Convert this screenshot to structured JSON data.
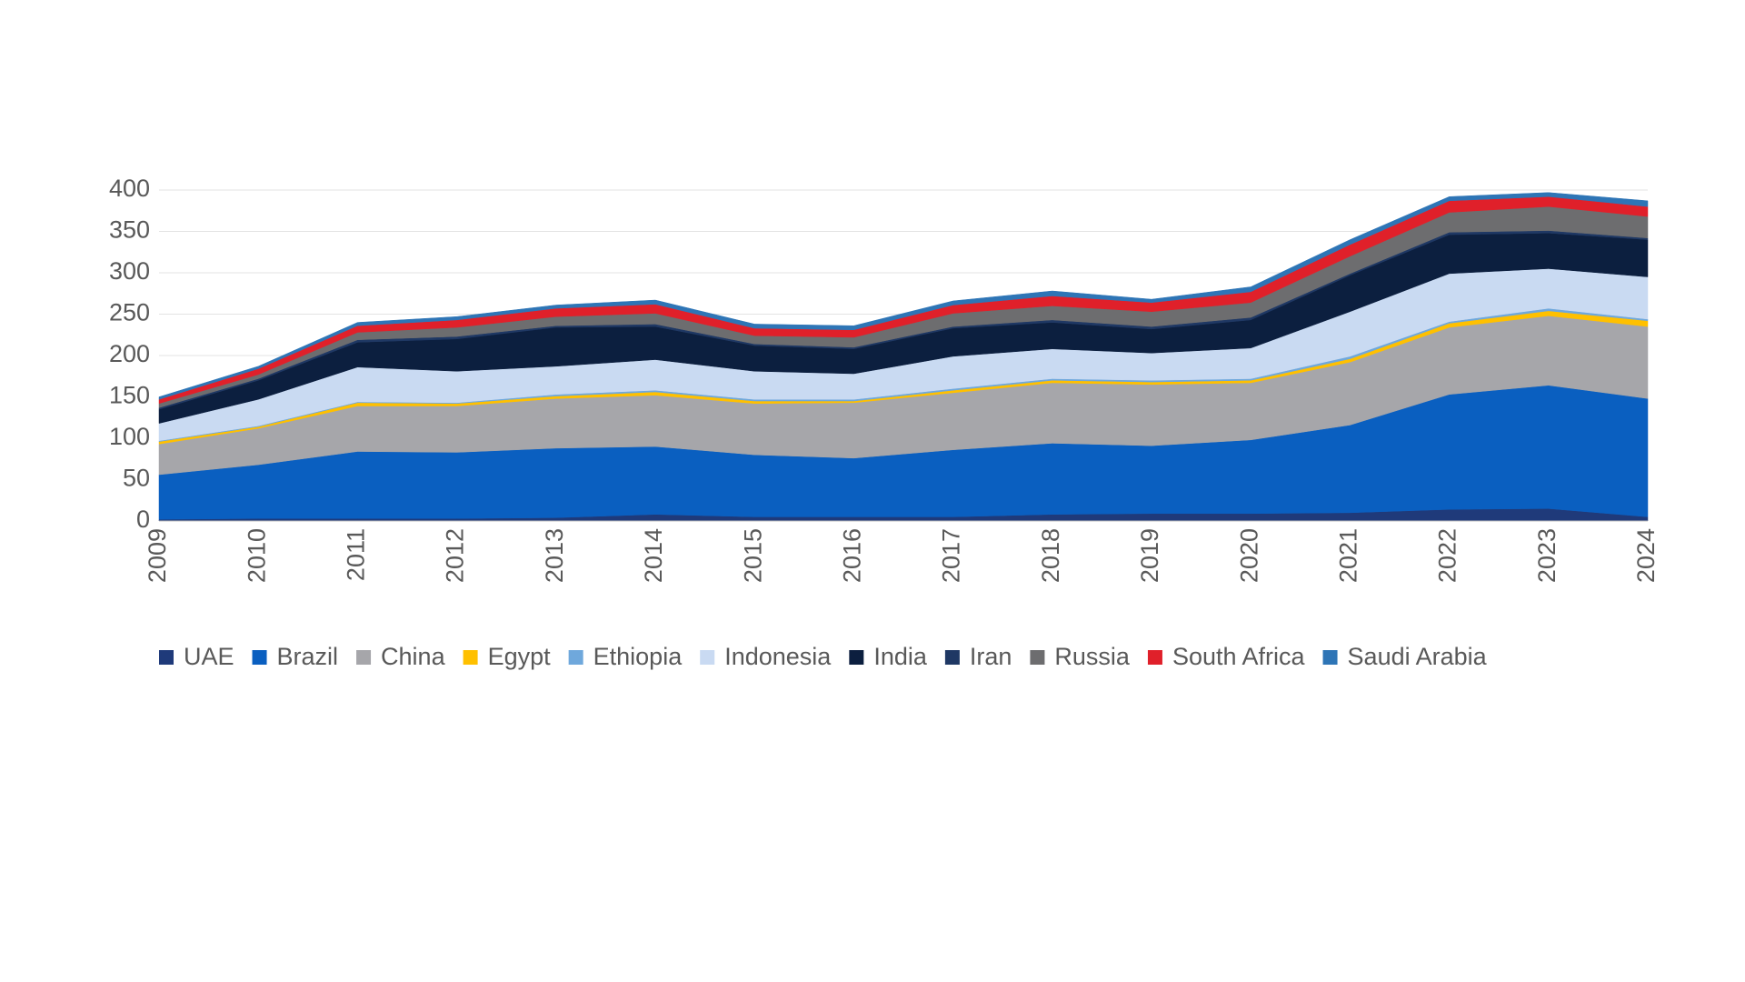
{
  "chart_data": {
    "type": "stacked-area",
    "categories": [
      "2009",
      "2010",
      "2011",
      "2012",
      "2013",
      "2014",
      "2015",
      "2016",
      "2017",
      "2018",
      "2019",
      "2020",
      "2021",
      "2022",
      "2023",
      "2024"
    ],
    "series": [
      {
        "name": "UAE",
        "color": "#1f3a7a",
        "values": [
          2,
          3,
          3,
          3,
          4,
          8,
          5,
          5,
          5,
          8,
          9,
          9,
          10,
          14,
          15,
          5
        ]
      },
      {
        "name": "Brazil",
        "color": "#0a5fc0",
        "values": [
          54,
          65,
          81,
          80,
          84,
          82,
          75,
          71,
          81,
          86,
          82,
          89,
          106,
          139,
          149,
          143
        ]
      },
      {
        "name": "China",
        "color": "#a6a6aa",
        "values": [
          37,
          44,
          55,
          56,
          60,
          62,
          62,
          67,
          69,
          73,
          74,
          69,
          76,
          81,
          84,
          87
        ]
      },
      {
        "name": "Egypt",
        "color": "#ffc000",
        "values": [
          3,
          2,
          4,
          3,
          3,
          4,
          3,
          2,
          3,
          3,
          3,
          3,
          4,
          5,
          6,
          7
        ]
      },
      {
        "name": "Ethiopia",
        "color": "#6fa8dc",
        "values": [
          1,
          1,
          1,
          1,
          2,
          2,
          2,
          2,
          2,
          2,
          2,
          2,
          3,
          2,
          3,
          2
        ]
      },
      {
        "name": "Indonesia",
        "color": "#c9daf2",
        "values": [
          21,
          32,
          42,
          38,
          34,
          37,
          34,
          31,
          39,
          36,
          33,
          37,
          54,
          58,
          48,
          51
        ]
      },
      {
        "name": "India",
        "color": "#0c1f3f",
        "values": [
          17,
          23,
          30,
          39,
          47,
          40,
          31,
          30,
          34,
          32,
          29,
          34,
          44,
          47,
          43,
          45
        ]
      },
      {
        "name": "Iran",
        "color": "#1f3864",
        "values": [
          2,
          2,
          3,
          3,
          2,
          3,
          2,
          2,
          2,
          3,
          3,
          3,
          2,
          3,
          3,
          2
        ]
      },
      {
        "name": "Russia",
        "color": "#6d6d6f",
        "values": [
          5,
          5,
          9,
          11,
          11,
          13,
          10,
          12,
          16,
          17,
          18,
          18,
          21,
          24,
          29,
          26
        ]
      },
      {
        "name": "South Africa",
        "color": "#e0202a",
        "values": [
          5,
          7,
          8,
          9,
          10,
          11,
          9,
          9,
          10,
          12,
          11,
          13,
          14,
          14,
          12,
          12
        ]
      },
      {
        "name": "Saudi Arabia",
        "color": "#2e75b6",
        "values": [
          3,
          3,
          4,
          4,
          4,
          5,
          5,
          5,
          5,
          6,
          4,
          6,
          6,
          5,
          5,
          7
        ]
      }
    ],
    "ylim": [
      0,
      400
    ],
    "yticks": [
      0,
      50,
      100,
      150,
      200,
      250,
      300,
      350,
      400
    ],
    "grid": true,
    "legend": "bottom"
  }
}
